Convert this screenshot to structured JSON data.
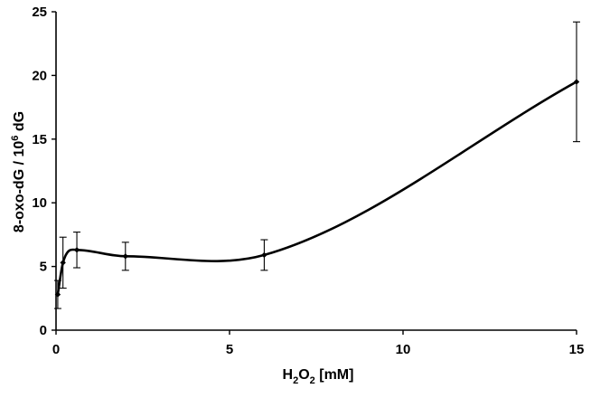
{
  "chart_data": {
    "type": "line",
    "title": "",
    "xlabel": {
      "main": "H",
      "sub1": "2",
      "mid": "O",
      "sub2": "2",
      "tail": " [mM]"
    },
    "ylabel": {
      "main": "8-oxo-dG / 10",
      "sup": "6",
      "tail": " dG"
    },
    "xlim": [
      0,
      15
    ],
    "ylim": [
      0,
      25
    ],
    "xticks": [
      0,
      5,
      10,
      15
    ],
    "yticks": [
      0,
      5,
      10,
      15,
      20,
      25
    ],
    "grid": false,
    "legend": "none",
    "series": [
      {
        "x": [
          0.05,
          0.2,
          0.6,
          2,
          6,
          15
        ],
        "y": [
          2.8,
          5.3,
          6.3,
          5.8,
          5.9,
          19.5
        ],
        "error": [
          1.1,
          2.0,
          1.4,
          1.1,
          1.2,
          4.7
        ]
      }
    ]
  }
}
